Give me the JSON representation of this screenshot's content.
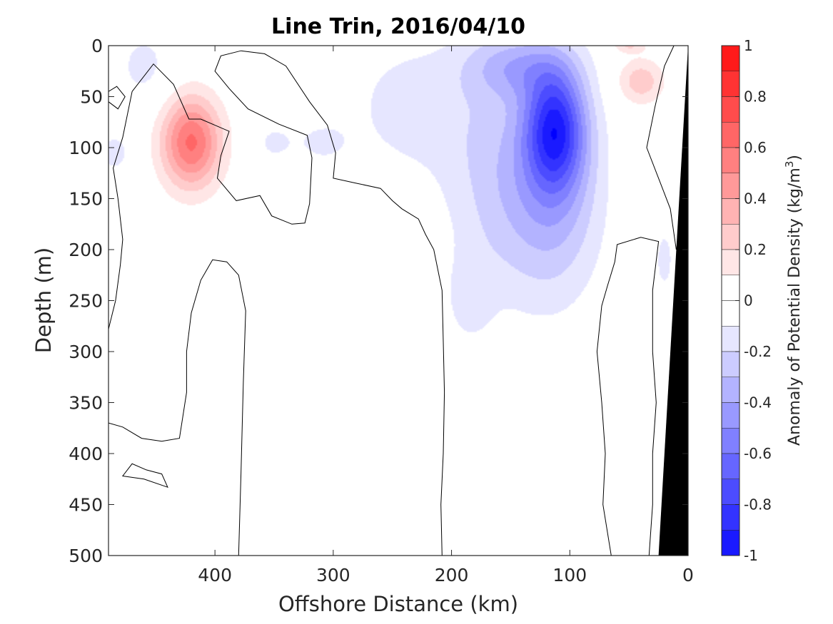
{
  "chart_data": {
    "type": "heatmap",
    "title": "Line Trin, 2016/04/10",
    "xlabel": "Offshore Distance (km)",
    "ylabel": "Depth (m)",
    "colorbar_label": "Anomaly of Potential Density (kg/m",
    "colorbar_label_sup": "3",
    "colorbar_label_end": ")",
    "xlim": [
      490,
      0
    ],
    "ylim": [
      0,
      500
    ],
    "x_reversed": true,
    "y_reversed": true,
    "clim": [
      -1,
      1
    ],
    "levels_step": 0.1,
    "x_ticks": [
      400,
      300,
      200,
      100,
      0
    ],
    "x_tick_labels": [
      "400",
      "300",
      "200",
      "100",
      "0"
    ],
    "y_ticks": [
      0,
      50,
      100,
      150,
      200,
      250,
      300,
      350,
      400,
      450,
      500
    ],
    "y_tick_labels": [
      "0",
      "50",
      "100",
      "150",
      "200",
      "250",
      "300",
      "350",
      "400",
      "450",
      "500"
    ],
    "colorbar_ticks": [
      1,
      0.8,
      0.6,
      0.4,
      0.2,
      0,
      -0.2,
      -0.4,
      -0.6,
      -0.8,
      -1
    ],
    "colorbar_tick_labels": [
      "1",
      "0.8",
      "0.6",
      "0.4",
      "0.2",
      "0",
      "-0.2",
      "-0.4",
      "-0.6",
      "-0.8",
      "-1"
    ],
    "colormap": {
      "negative": "#0000ff",
      "zero": "#ffffff",
      "positive": "#ff0000"
    },
    "bathymetry_color": "#000000",
    "anomalies": [
      {
        "x": 420,
        "depth": 95,
        "sx": 18,
        "sy": 32,
        "value": 0.62
      },
      {
        "x": 40,
        "depth": 35,
        "sx": 14,
        "sy": 16,
        "value": 0.27
      },
      {
        "x": 50,
        "depth": 0,
        "sx": 10,
        "sy": 5,
        "value": 0.2
      },
      {
        "x": 112,
        "depth": 80,
        "sx": 18,
        "sy": 42,
        "value": -0.75
      },
      {
        "x": 112,
        "depth": 150,
        "sx": 28,
        "sy": 70,
        "value": -0.3
      },
      {
        "x": 160,
        "depth": 130,
        "sx": 32,
        "sy": 80,
        "value": -0.22
      },
      {
        "x": 145,
        "depth": 20,
        "sx": 30,
        "sy": 22,
        "value": -0.28
      },
      {
        "x": 185,
        "depth": 250,
        "sx": 14,
        "sy": 30,
        "value": -0.12
      },
      {
        "x": 235,
        "depth": 60,
        "sx": 40,
        "sy": 50,
        "value": -0.14
      },
      {
        "x": 460,
        "depth": 20,
        "sx": 18,
        "sy": 28,
        "value": -0.13
      },
      {
        "x": 485,
        "depth": 105,
        "sx": 10,
        "sy": 14,
        "value": -0.15
      },
      {
        "x": 350,
        "depth": 95,
        "sx": 12,
        "sy": 14,
        "value": -0.12
      },
      {
        "x": 310,
        "depth": 95,
        "sx": 16,
        "sy": 14,
        "value": -0.12
      },
      {
        "x": 20,
        "depth": 210,
        "sx": 6,
        "sy": 24,
        "value": -0.14
      }
    ],
    "bathymetry": [
      {
        "x": 0,
        "depth": 0
      },
      {
        "x": 25,
        "depth": 500
      },
      {
        "x": 0,
        "depth": 500
      }
    ],
    "zero_contours": [
      [
        [
          380,
          500
        ],
        [
          378,
          420
        ],
        [
          376,
          330
        ],
        [
          374,
          260
        ],
        [
          380,
          225
        ],
        [
          390,
          212
        ],
        [
          402,
          210
        ],
        [
          412,
          230
        ],
        [
          420,
          262
        ],
        [
          424,
          300
        ],
        [
          424,
          340
        ],
        [
          430,
          385
        ],
        [
          445,
          388
        ],
        [
          462,
          385
        ],
        [
          478,
          374
        ],
        [
          490,
          370
        ]
      ],
      [
        [
          490,
          278
        ],
        [
          484,
          250
        ],
        [
          480,
          215
        ],
        [
          478,
          190
        ],
        [
          482,
          150
        ],
        [
          486,
          120
        ],
        [
          478,
          90
        ],
        [
          470,
          45
        ],
        [
          452,
          18
        ],
        [
          435,
          38
        ],
        [
          422,
          72
        ],
        [
          412,
          72
        ],
        [
          388,
          84
        ],
        [
          395,
          108
        ],
        [
          398,
          130
        ],
        [
          382,
          152
        ],
        [
          362,
          147
        ],
        [
          352,
          167
        ],
        [
          335,
          175
        ],
        [
          324,
          174
        ],
        [
          320,
          155
        ],
        [
          318,
          110
        ],
        [
          322,
          88
        ],
        [
          346,
          77
        ],
        [
          372,
          62
        ],
        [
          388,
          42
        ],
        [
          400,
          25
        ],
        [
          395,
          10
        ],
        [
          378,
          5
        ],
        [
          358,
          8
        ],
        [
          340,
          20
        ],
        [
          320,
          55
        ],
        [
          305,
          78
        ],
        [
          298,
          105
        ],
        [
          300,
          130
        ],
        [
          280,
          135
        ],
        [
          260,
          140
        ],
        [
          250,
          152
        ],
        [
          242,
          160
        ],
        [
          228,
          170
        ],
        [
          222,
          185
        ],
        [
          215,
          200
        ],
        [
          208,
          240
        ],
        [
          207,
          290
        ],
        [
          206,
          340
        ],
        [
          207,
          400
        ],
        [
          209,
          450
        ],
        [
          208,
          500
        ]
      ],
      [
        [
          65,
          500
        ],
        [
          72,
          450
        ],
        [
          70,
          400
        ],
        [
          73,
          350
        ],
        [
          77,
          300
        ],
        [
          73,
          255
        ],
        [
          68,
          235
        ],
        [
          62,
          212
        ],
        [
          60,
          195
        ],
        [
          40,
          188
        ],
        [
          25,
          192
        ],
        [
          30,
          240
        ],
        [
          30,
          300
        ],
        [
          27,
          350
        ],
        [
          30,
          400
        ],
        [
          30,
          450
        ],
        [
          33,
          500
        ]
      ],
      [
        [
          0,
          0
        ],
        [
          5,
          0
        ],
        [
          12,
          0
        ],
        [
          20,
          20
        ],
        [
          28,
          60
        ],
        [
          35,
          100
        ],
        [
          25,
          130
        ],
        [
          15,
          160
        ],
        [
          10,
          200
        ]
      ],
      [
        [
          490,
          45
        ],
        [
          483,
          40
        ],
        [
          476,
          50
        ],
        [
          482,
          62
        ],
        [
          490,
          55
        ]
      ],
      [
        [
          458,
          416
        ],
        [
          445,
          420
        ],
        [
          440,
          433
        ],
        [
          460,
          425
        ],
        [
          478,
          422
        ],
        [
          470,
          410
        ],
        [
          458,
          416
        ]
      ]
    ]
  }
}
